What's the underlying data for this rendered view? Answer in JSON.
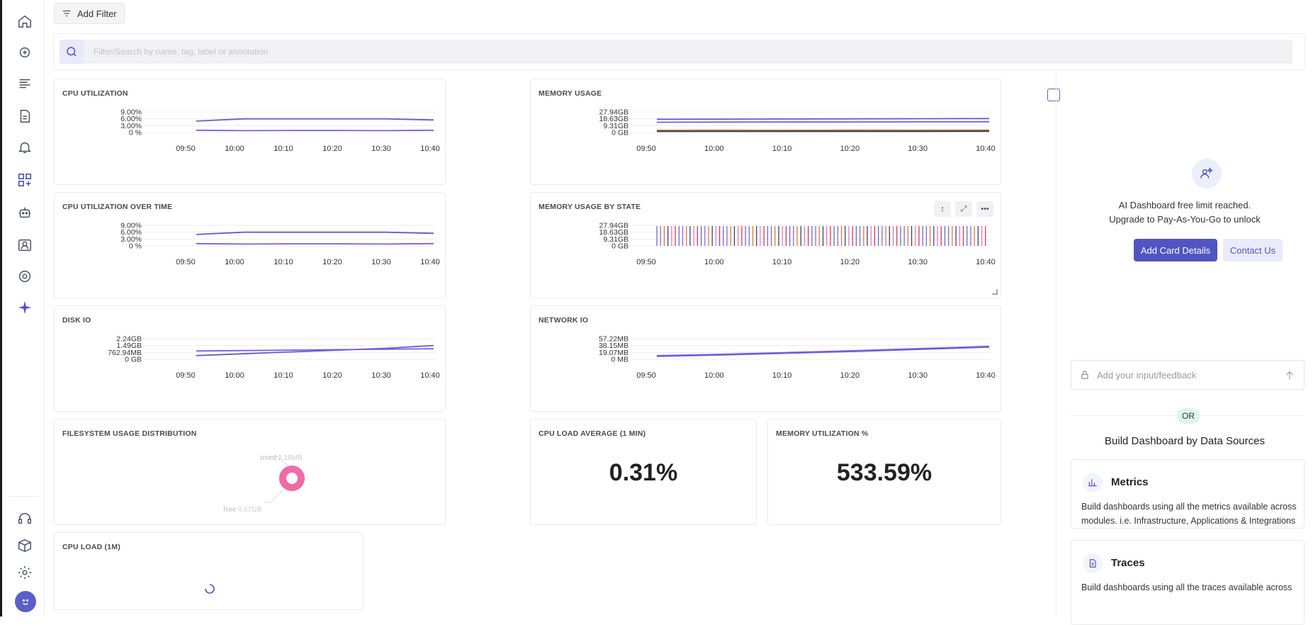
{
  "toolbar": {
    "add_filter_label": "Add Filter"
  },
  "search": {
    "placeholder": "Filter/Search by name, tag, label or annotation"
  },
  "time_ticks": [
    "09:50",
    "10:00",
    "10:10",
    "10:20",
    "10:30",
    "10:40"
  ],
  "cards": {
    "cpu_utilization": {
      "title": "CPU UTILIZATION",
      "y_ticks": [
        "9.00%",
        "6.00%",
        "3.00%",
        "0 %"
      ]
    },
    "memory_usage": {
      "title": "MEMORY USAGE",
      "y_ticks": [
        "27.94GB",
        "18.63GB",
        "9.31GB",
        "0 GB"
      ]
    },
    "cpu_utilization_over_time": {
      "title": "CPU UTILIZATION OVER TIME",
      "y_ticks": [
        "9.00%",
        "6.00%",
        "3.00%",
        "0 %"
      ]
    },
    "memory_usage_by_state": {
      "title": "MEMORY USAGE BY STATE",
      "y_ticks": [
        "27.94GB",
        "18.63GB",
        "9.31GB",
        "0 GB"
      ]
    },
    "disk_io": {
      "title": "DISK IO",
      "y_ticks": [
        "2.24GB",
        "1.49GB",
        "762.94MB",
        "0 GB"
      ]
    },
    "network_io": {
      "title": "NETWORK IO",
      "y_ticks": [
        "57.22MB",
        "38.15MB",
        "19.07MB",
        "0 MB"
      ]
    },
    "filesystem_usage_distribution": {
      "title": "FILESYSTEM USAGE DISTRIBUTION",
      "used_label": "used",
      "used_value": "2.18MB",
      "free_label": "free",
      "free_value": "4.67GB"
    },
    "cpu_load_average": {
      "title": "CPU LOAD AVERAGE (1 MIN)",
      "value": "0.31%"
    },
    "memory_utilization": {
      "title": "MEMORY UTILIZATION %",
      "value": "533.59%"
    },
    "cpu_load": {
      "title": "CPU LOAD (1M)"
    }
  },
  "right_panel": {
    "message_line1": "AI Dashboard free limit reached.",
    "message_line2": "Upgrade to Pay-As-You-Go to unlock",
    "add_card_label": "Add Card Details",
    "contact_label": "Contact Us",
    "feedback_placeholder": "Add your input/feedback",
    "or_label": "OR",
    "build_title": "Build Dashboard by Data Sources",
    "sources": [
      {
        "title": "Metrics",
        "description": "Build dashboards using all the metrics available across modules. i.e. Infrastructure, Applications & Integrations"
      },
      {
        "title": "Traces",
        "description": "Build dashboards using all the traces available across"
      }
    ]
  },
  "colors": {
    "accent": "#5155c1",
    "purple": "#7c5ce0",
    "indigo": "#5b5fd1",
    "orange": "#e0701c",
    "pink": "#f06aa8",
    "crimson": "#d12a4a",
    "navy": "#243a6b"
  },
  "chart_data": [
    {
      "type": "line",
      "title": "CPU UTILIZATION",
      "x": [
        "09:50",
        "10:00",
        "10:10",
        "10:20",
        "10:30",
        "10:40"
      ],
      "ylim": [
        0,
        9
      ],
      "series": [
        {
          "values": [
            5,
            6,
            6,
            6,
            6,
            5.5
          ]
        },
        {
          "values": [
            1,
            0.8,
            0.9,
            0.9,
            0.8,
            1
          ]
        }
      ]
    },
    {
      "type": "line",
      "title": "MEMORY USAGE",
      "x": [
        "09:50",
        "10:00",
        "10:10",
        "10:20",
        "10:30",
        "10:40"
      ],
      "ylim": [
        0,
        27.94
      ],
      "series": [
        {
          "values": [
            18,
            18.2,
            18.4,
            18.6,
            18.8,
            19
          ]
        },
        {
          "values": [
            14,
            14.2,
            14.3,
            14.4,
            14.5,
            14.6
          ]
        },
        {
          "values": [
            3,
            3.1,
            3.0,
            3.2,
            3.1,
            3.2
          ]
        },
        {
          "values": [
            1.5,
            1.5,
            1.6,
            1.6,
            1.6,
            1.7
          ]
        }
      ]
    },
    {
      "type": "line",
      "title": "CPU UTILIZATION OVER TIME",
      "x": [
        "09:50",
        "10:00",
        "10:10",
        "10:20",
        "10:30",
        "10:40"
      ],
      "ylim": [
        0,
        9
      ],
      "series": [
        {
          "values": [
            5,
            6,
            6,
            6,
            6,
            5.5
          ]
        },
        {
          "values": [
            1,
            0.8,
            0.9,
            0.9,
            0.8,
            1
          ]
        }
      ]
    },
    {
      "type": "bar",
      "title": "MEMORY USAGE BY STATE",
      "x": [
        "09:50",
        "10:00",
        "10:10",
        "10:20",
        "10:30",
        "10:40"
      ],
      "ylim": [
        0,
        27.94
      ]
    },
    {
      "type": "line",
      "title": "DISK IO",
      "x": [
        "09:50",
        "10:00",
        "10:10",
        "10:20",
        "10:30",
        "10:40"
      ],
      "ylim": [
        0,
        2.24
      ],
      "series": [
        {
          "values": [
            0.4,
            0.6,
            0.8,
            1.0,
            1.2,
            1.5
          ]
        },
        {
          "values": [
            0.9,
            0.95,
            1.0,
            1.05,
            1.1,
            1.15
          ]
        }
      ]
    },
    {
      "type": "line",
      "title": "NETWORK IO",
      "x": [
        "09:50",
        "10:00",
        "10:10",
        "10:20",
        "10:30",
        "10:40"
      ],
      "ylim": [
        0,
        57.22
      ],
      "series": [
        {
          "values": [
            8,
            12,
            17,
            22,
            28,
            34
          ]
        },
        {
          "values": [
            10,
            14,
            19,
            24,
            30,
            36
          ]
        }
      ]
    },
    {
      "type": "pie",
      "title": "FILESYSTEM USAGE DISTRIBUTION",
      "categories": [
        "used",
        "free"
      ],
      "values": [
        "2.18MB",
        "4.67GB"
      ]
    }
  ]
}
